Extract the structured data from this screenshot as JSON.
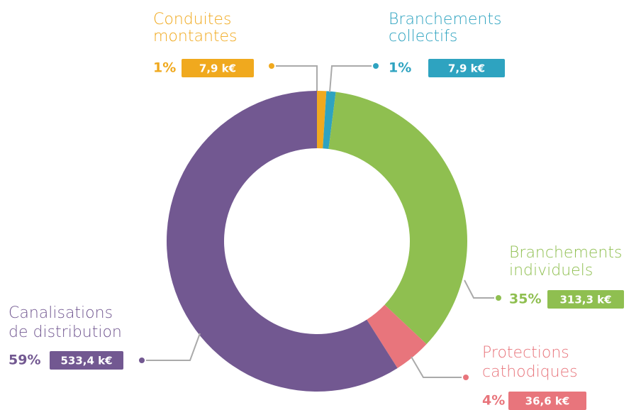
{
  "chart_data": {
    "type": "donut",
    "categories": [
      [
        "Conduites",
        "montantes"
      ],
      [
        "Branchements",
        "collectifs"
      ],
      [
        "Branchements",
        "individuels"
      ],
      [
        "Protections",
        "cathodiques"
      ],
      [
        "Canalisations",
        "de distribution"
      ]
    ],
    "values": [
      1,
      1,
      35,
      4,
      59
    ],
    "value_labels": [
      "1%",
      "1%",
      "35%",
      "4%",
      "59%"
    ],
    "amount_labels": [
      "7,9 k€",
      "7,9 k€",
      "313,3 k€",
      "36,6 k€",
      "533,4 k€"
    ],
    "colors": [
      "#f0a91e",
      "#2ea3c0",
      "#8fbf50",
      "#e8757c",
      "#725891"
    ]
  }
}
